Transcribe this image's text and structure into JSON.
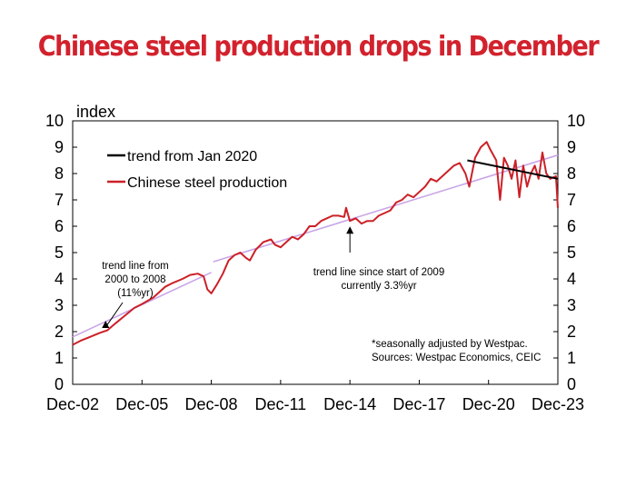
{
  "chart_data": {
    "type": "line",
    "title": "Chinese steel production drops in December",
    "ylabel": "index",
    "ylim": [
      0,
      10
    ],
    "y_ticks": [
      0,
      1,
      2,
      3,
      4,
      5,
      6,
      7,
      8,
      9,
      10
    ],
    "x_tick_labels": [
      "Dec-02",
      "Dec-05",
      "Dec-08",
      "Dec-11",
      "Dec-14",
      "Dec-17",
      "Dec-20",
      "Dec-23"
    ],
    "x_range": [
      "2002-12",
      "2023-12"
    ],
    "grid": false,
    "legend_position": "top-left",
    "colors": {
      "steel": "#cc2027",
      "trend_2020": "#000000",
      "trend_lines": "#c9a6e8",
      "title": "#d2222d"
    },
    "legend": [
      {
        "label": "trend from Jan 2020",
        "series": "trend_2020"
      },
      {
        "label": "Chinese steel production",
        "series": "steel"
      }
    ],
    "series": [
      {
        "key": "steel",
        "name": "Chinese steel production",
        "x": [
          "2002-12",
          "2003-04",
          "2003-09",
          "2004-02",
          "2004-06",
          "2004-10",
          "2005-03",
          "2005-08",
          "2005-12",
          "2006-06",
          "2006-12",
          "2007-04",
          "2007-09",
          "2008-01",
          "2008-05",
          "2008-08",
          "2008-10",
          "2008-12",
          "2009-03",
          "2009-06",
          "2009-09",
          "2009-12",
          "2010-03",
          "2010-06",
          "2010-08",
          "2010-11",
          "2011-03",
          "2011-07",
          "2011-09",
          "2011-12",
          "2012-03",
          "2012-06",
          "2012-09",
          "2012-12",
          "2013-03",
          "2013-06",
          "2013-09",
          "2013-12",
          "2014-03",
          "2014-06",
          "2014-09",
          "2014-10",
          "2014-12",
          "2015-03",
          "2015-06",
          "2015-09",
          "2015-12",
          "2016-03",
          "2016-06",
          "2016-09",
          "2016-12",
          "2017-03",
          "2017-06",
          "2017-09",
          "2017-12",
          "2018-03",
          "2018-06",
          "2018-09",
          "2018-12",
          "2019-03",
          "2019-06",
          "2019-09",
          "2019-12",
          "2020-02",
          "2020-05",
          "2020-08",
          "2020-11",
          "2021-01",
          "2021-04",
          "2021-06",
          "2021-08",
          "2021-10",
          "2021-12",
          "2022-02",
          "2022-04",
          "2022-06",
          "2022-08",
          "2022-10",
          "2022-12",
          "2023-02",
          "2023-04",
          "2023-06",
          "2023-08",
          "2023-11",
          "2023-12"
        ],
        "values": [
          1.5,
          1.65,
          1.8,
          1.95,
          2.05,
          2.3,
          2.6,
          2.9,
          3.05,
          3.3,
          3.7,
          3.85,
          4.0,
          4.15,
          4.2,
          4.1,
          3.6,
          3.45,
          3.8,
          4.2,
          4.7,
          4.9,
          5.0,
          4.8,
          4.7,
          5.1,
          5.4,
          5.5,
          5.3,
          5.2,
          5.4,
          5.6,
          5.5,
          5.7,
          6.0,
          6.0,
          6.2,
          6.3,
          6.4,
          6.4,
          6.35,
          6.7,
          6.2,
          6.3,
          6.1,
          6.2,
          6.2,
          6.4,
          6.5,
          6.6,
          6.9,
          7.0,
          7.2,
          7.1,
          7.3,
          7.5,
          7.8,
          7.7,
          7.9,
          8.1,
          8.3,
          8.4,
          8.0,
          7.5,
          8.6,
          9.0,
          9.2,
          8.9,
          8.5,
          7.0,
          8.6,
          8.3,
          7.8,
          8.5,
          7.1,
          8.3,
          7.5,
          8.0,
          8.3,
          7.8,
          8.8,
          8.0,
          7.8,
          7.9,
          6.7
        ]
      },
      {
        "key": "trend_2020",
        "name": "trend from Jan 2020",
        "x": [
          "2020-01",
          "2023-12"
        ],
        "values": [
          8.5,
          7.8
        ]
      },
      {
        "key": "trend_2000_2008",
        "x": [
          "2002-12",
          "2008-12"
        ],
        "values": [
          1.8,
          4.25
        ]
      },
      {
        "key": "trend_2009",
        "x": [
          "2009-01",
          "2023-12"
        ],
        "values": [
          4.65,
          8.7
        ]
      }
    ],
    "annotations": [
      {
        "key": "note-2000-2008",
        "lines": [
          "trend line from",
          "2000 to 2008",
          "(11%yr)"
        ],
        "points_to": {
          "x": "2004-07",
          "y": 2.55
        }
      },
      {
        "key": "note-2009",
        "lines": [
          "trend line since start of 2009",
          "currently 3.3%yr"
        ],
        "points_to": {
          "x": "2014-12",
          "y": 6.2
        }
      },
      {
        "key": "note-source",
        "lines": [
          "*seasonally adjusted by Westpac.",
          "Sources: Westpac Economics, CEIC"
        ]
      }
    ]
  }
}
